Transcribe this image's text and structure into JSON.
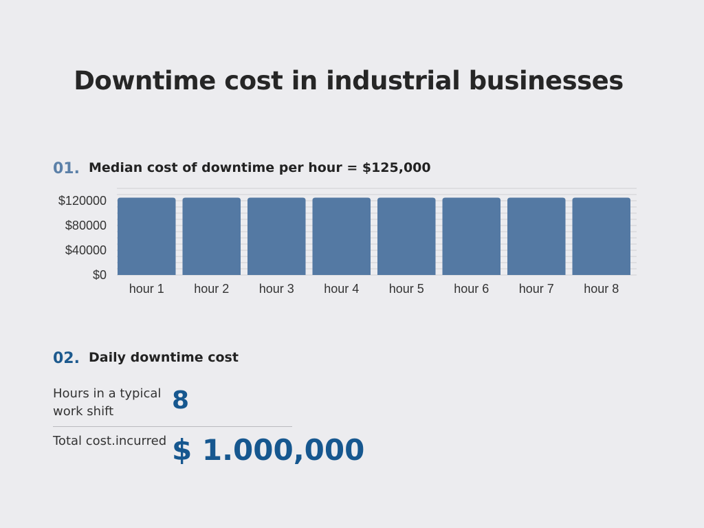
{
  "title": "Downtime cost in industrial businesses",
  "section1": {
    "number": "01.",
    "title": "Median cost of downtime per hour = $125,000"
  },
  "section2": {
    "number": "02.",
    "title": "Daily downtime cost",
    "row1_label": "Hours in a typical work shift",
    "row1_value": "8",
    "row2_label": "Total cost.incurred",
    "row2_value": "$ 1.000,000"
  },
  "colors": {
    "bar": "#5479a3",
    "accent_dark": "#16578f",
    "accent_light": "#5b80a8"
  },
  "chart_data": {
    "type": "bar",
    "categories": [
      "hour 1",
      "hour 2",
      "hour 3",
      "hour 4",
      "hour 5",
      "hour 6",
      "hour 7",
      "hour 8"
    ],
    "values": [
      125000,
      125000,
      125000,
      125000,
      125000,
      125000,
      125000,
      125000
    ],
    "ylim": [
      0,
      140000
    ],
    "yticks": [
      0,
      40000,
      80000,
      120000
    ],
    "ytick_labels": [
      "$0",
      "$40000",
      "$80000",
      "$120000"
    ],
    "grid": true
  }
}
